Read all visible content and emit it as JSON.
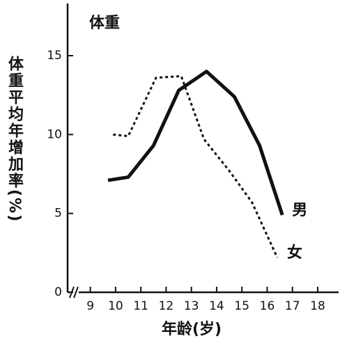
{
  "chart_data": {
    "type": "line",
    "title": "体重",
    "y_label": "体重平均年增加率(%)",
    "x_label": "年龄(岁)",
    "xlim": [
      8.1,
      18.8
    ],
    "xticks": [
      9,
      10,
      11,
      12,
      13,
      14,
      15,
      16,
      17,
      18
    ],
    "ylim": [
      0,
      18
    ],
    "yticks": [
      0,
      5,
      10,
      15
    ],
    "series": [
      {
        "name": "男",
        "color": "#111111",
        "line_style": "solid",
        "x": [
          9.7,
          10.5,
          11.5,
          12.5,
          13.6,
          14.7,
          15.7,
          16.6
        ],
        "values": [
          7.1,
          7.3,
          9.3,
          12.8,
          14.0,
          12.4,
          9.3,
          4.9
        ]
      },
      {
        "name": "女",
        "color": "#111111",
        "line_style": "dashed",
        "x": [
          9.9,
          10.5,
          11.6,
          12.6,
          13.5,
          14.5,
          15.4,
          16.4
        ],
        "values": [
          10.0,
          9.9,
          13.6,
          13.7,
          9.7,
          7.7,
          5.7,
          2.2
        ]
      }
    ]
  }
}
